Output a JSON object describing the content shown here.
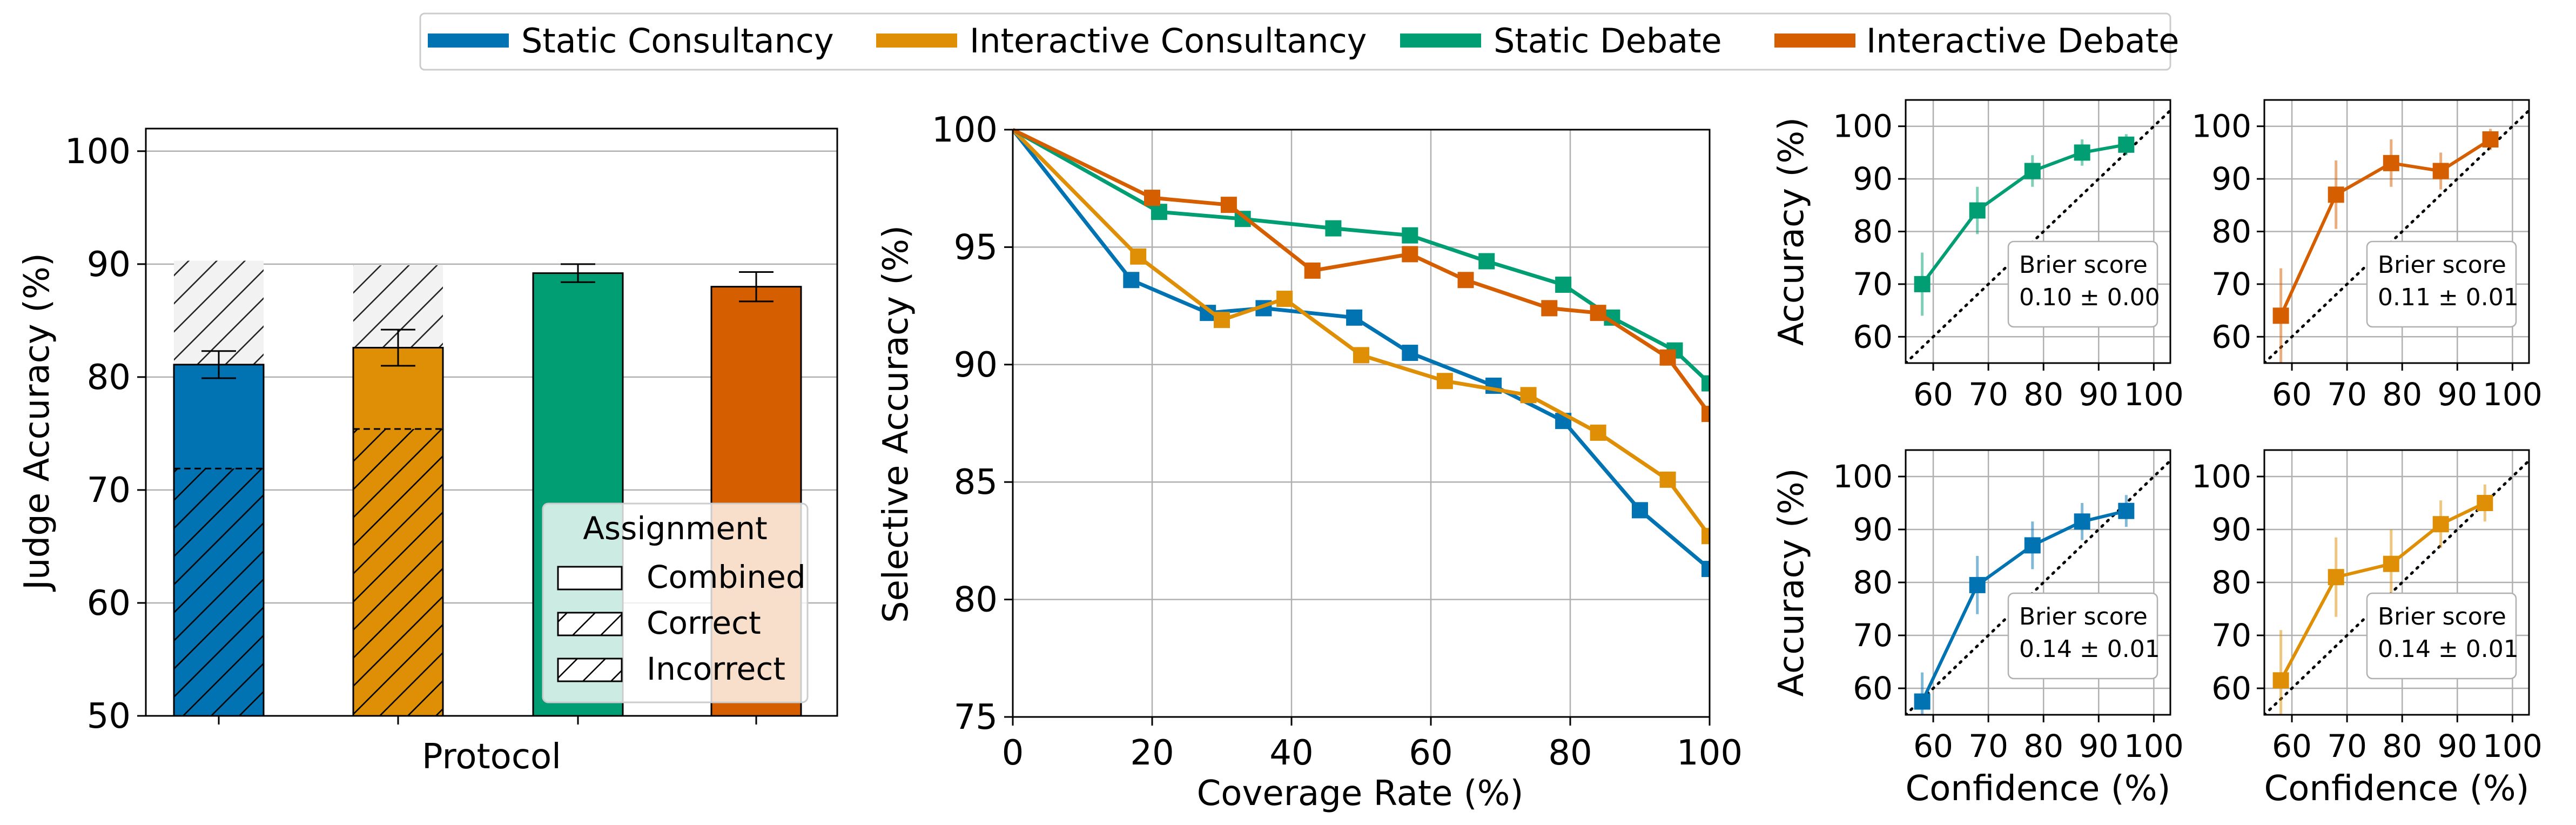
{
  "colors": {
    "static_consultancy": "#0173b2",
    "interactive_consultancy": "#de8f05",
    "static_debate": "#029e73",
    "interactive_debate": "#d55e00",
    "grid": "#b0b0b0",
    "hatch_face": "#f2f2f2"
  },
  "legend": {
    "items": [
      {
        "label": "Static Consultancy",
        "color": "#0173b2"
      },
      {
        "label": "Interactive Consultancy",
        "color": "#de8f05"
      },
      {
        "label": "Static Debate",
        "color": "#029e73"
      },
      {
        "label": "Interactive Debate",
        "color": "#d55e00"
      }
    ],
    "placement": "top-center"
  },
  "chart_data": [
    {
      "type": "bar",
      "xlabel": "Protocol",
      "ylabel": "Judge Accuracy (%)",
      "ylim": [
        50,
        102
      ],
      "yticks": [
        50,
        60,
        70,
        80,
        90,
        100
      ],
      "grid": "y",
      "categories": [
        "Static Consultancy",
        "Interactive Consultancy",
        "Static Debate",
        "Interactive Debate"
      ],
      "combined": [
        81.1,
        82.6,
        89.2,
        88.0
      ],
      "combined_err": [
        1.2,
        1.6,
        0.8,
        1.3
      ],
      "correct": [
        90.3,
        89.9,
        null,
        null
      ],
      "incorrect": [
        71.9,
        75.4,
        null,
        null
      ],
      "legend": {
        "title": "Assignment",
        "items": [
          "Combined",
          "Correct",
          "Incorrect"
        ],
        "placement": "lower-right"
      }
    },
    {
      "type": "line",
      "xlabel": "Coverage Rate (%)",
      "ylabel": "Selective Accuracy (%)",
      "xlim": [
        0,
        100
      ],
      "ylim": [
        75,
        100
      ],
      "xticks": [
        0,
        20,
        40,
        60,
        80,
        100
      ],
      "yticks": [
        75,
        80,
        85,
        90,
        95,
        100
      ],
      "grid": true,
      "series": [
        {
          "name": "Static Consultancy",
          "x": [
            0,
            17,
            28,
            36,
            49,
            57,
            69,
            79,
            90,
            100
          ],
          "y": [
            100,
            93.6,
            92.2,
            92.4,
            92.0,
            90.5,
            89.1,
            87.6,
            83.8,
            81.3
          ]
        },
        {
          "name": "Interactive Consultancy",
          "x": [
            0,
            18,
            30,
            39,
            50,
            62,
            74,
            84,
            94,
            100
          ],
          "y": [
            100,
            94.6,
            91.9,
            92.8,
            90.4,
            89.3,
            88.7,
            87.1,
            85.1,
            82.7
          ]
        },
        {
          "name": "Static Debate",
          "x": [
            0,
            21,
            33,
            46,
            57,
            68,
            79,
            86,
            95,
            100
          ],
          "y": [
            100,
            96.5,
            96.2,
            95.8,
            95.5,
            94.4,
            93.4,
            92.0,
            90.6,
            89.2
          ]
        },
        {
          "name": "Interactive Debate",
          "x": [
            0,
            20,
            31,
            43,
            57,
            65,
            77,
            84,
            94,
            100
          ],
          "y": [
            100,
            97.1,
            96.8,
            94.0,
            94.7,
            93.6,
            92.4,
            92.2,
            90.3,
            87.9
          ]
        }
      ]
    },
    {
      "type": "line",
      "subplot": "top-left",
      "series_name": "Static Debate",
      "xlabel": "",
      "ylabel": "Accuracy (%)",
      "xlim": [
        55,
        103
      ],
      "ylim": [
        55,
        105
      ],
      "xticks": [
        60,
        70,
        80,
        90,
        100
      ],
      "yticks": [
        60,
        70,
        80,
        90,
        100
      ],
      "grid": true,
      "x": [
        58,
        68,
        78,
        87,
        95
      ],
      "y": [
        70,
        84,
        91.5,
        95,
        96.5
      ],
      "err": [
        6,
        4.5,
        3,
        2.5,
        2
      ],
      "diagonal": true,
      "annotation": [
        "Brier score",
        "0.10 ± 0.00"
      ]
    },
    {
      "type": "line",
      "subplot": "top-right",
      "series_name": "Interactive Debate",
      "xlabel": "",
      "ylabel": "",
      "xlim": [
        55,
        103
      ],
      "ylim": [
        55,
        105
      ],
      "xticks": [
        60,
        70,
        80,
        90,
        100
      ],
      "yticks": [
        60,
        70,
        80,
        90,
        100
      ],
      "grid": true,
      "x": [
        58,
        68,
        78,
        87,
        96
      ],
      "y": [
        64,
        87,
        93,
        91.5,
        97.5
      ],
      "err": [
        9,
        6.5,
        4.5,
        3.5,
        2
      ],
      "diagonal": true,
      "annotation": [
        "Brier score",
        "0.11 ± 0.01"
      ]
    },
    {
      "type": "line",
      "subplot": "bottom-left",
      "series_name": "Static Consultancy",
      "xlabel": "Confidence (%)",
      "ylabel": "Accuracy (%)",
      "xlim": [
        55,
        103
      ],
      "ylim": [
        55,
        105
      ],
      "xticks": [
        60,
        70,
        80,
        90,
        100
      ],
      "yticks": [
        60,
        70,
        80,
        90,
        100
      ],
      "grid": true,
      "x": [
        58,
        68,
        78,
        87,
        95
      ],
      "y": [
        57.5,
        79.5,
        87,
        91.5,
        93.5
      ],
      "err": [
        5.5,
        5.5,
        4.5,
        3.5,
        3
      ],
      "diagonal": true,
      "annotation": [
        "Brier score",
        "0.14 ± 0.01"
      ]
    },
    {
      "type": "line",
      "subplot": "bottom-right",
      "series_name": "Interactive Consultancy",
      "xlabel": "Confidence (%)",
      "ylabel": "",
      "xlim": [
        55,
        103
      ],
      "ylim": [
        55,
        105
      ],
      "xticks": [
        60,
        70,
        80,
        90,
        100
      ],
      "yticks": [
        60,
        70,
        80,
        90,
        100
      ],
      "grid": true,
      "x": [
        58,
        68,
        78,
        87,
        95
      ],
      "y": [
        61.5,
        81,
        83.5,
        91,
        95
      ],
      "err": [
        9.5,
        7.5,
        6.5,
        4.5,
        3.5
      ],
      "diagonal": true,
      "annotation": [
        "Brier score",
        "0.14 ± 0.01"
      ]
    }
  ]
}
